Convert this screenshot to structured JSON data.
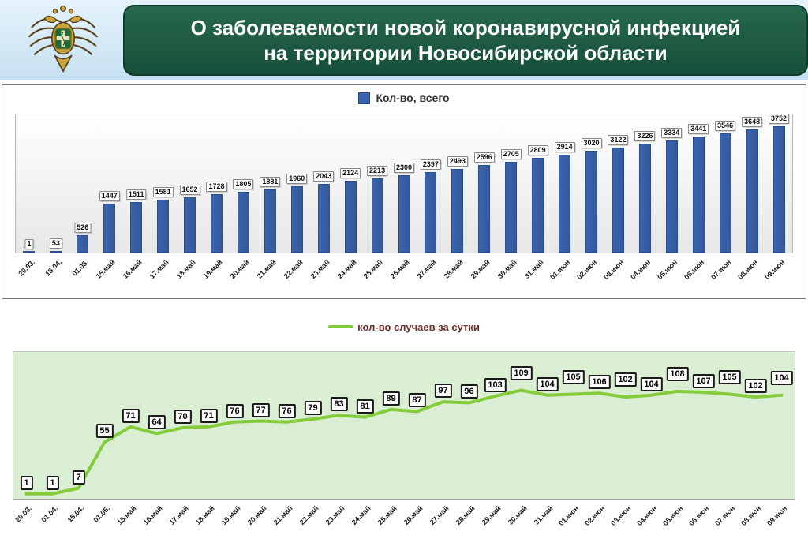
{
  "header": {
    "title_line1": "О заболеваемости новой коронавирусной инфекцией",
    "title_line2": "на территории Новосибирской области",
    "logo": "rospotrebnadzor-emblem",
    "banner_color": "#1c5a41"
  },
  "chart_data": [
    {
      "type": "bar",
      "legend": "Кол-во, всего",
      "bar_color": "#3a64ad",
      "legend_position": "top",
      "grid": false,
      "ylim": [
        0,
        4100
      ],
      "categories": [
        "20.03.",
        "15.04.",
        "01.05.",
        "15.май",
        "16.май",
        "17.май",
        "18.май",
        "19.май",
        "20.май",
        "21.май",
        "22.май",
        "23.май",
        "24.май",
        "25.май",
        "26.май",
        "27.май",
        "28.май",
        "29.май",
        "30.май",
        "31.май",
        "01.июн",
        "02.июн",
        "03.июн",
        "04.июн",
        "05.июн",
        "06.июн",
        "07.июн",
        "08.июн",
        "09.июн"
      ],
      "values": [
        1,
        53,
        526,
        1447,
        1511,
        1581,
        1652,
        1728,
        1805,
        1881,
        1960,
        2043,
        2124,
        2213,
        2300,
        2397,
        2493,
        2596,
        2705,
        2809,
        2914,
        3020,
        3122,
        3226,
        3334,
        3441,
        3546,
        3648,
        3752
      ]
    },
    {
      "type": "line",
      "legend": "кол-во случаев за сутки",
      "line_color": "#85cc3a",
      "plot_bg": "#d9eed2",
      "legend_position": "top",
      "grid": false,
      "ylim": [
        0,
        140
      ],
      "categories": [
        "20.03.",
        "01.04.",
        "15.04.",
        "01.05.",
        "15.май",
        "16.май",
        "17.май",
        "18.май",
        "19.май",
        "20.май",
        "21.май",
        "22.май",
        "23.май",
        "24.май",
        "25.май",
        "26.май",
        "27.май",
        "28.май",
        "29.май",
        "30.май",
        "31.май",
        "01.июн",
        "02.июн",
        "03.июн",
        "04.июн",
        "05.июн",
        "06.июн",
        "07.июн",
        "08.июн",
        "09.июн"
      ],
      "values": [
        1,
        1,
        7,
        55,
        71,
        64,
        70,
        71,
        76,
        77,
        76,
        79,
        83,
        81,
        89,
        87,
        97,
        96,
        103,
        109,
        104,
        105,
        106,
        102,
        104,
        108,
        107,
        105,
        102,
        104
      ]
    }
  ]
}
